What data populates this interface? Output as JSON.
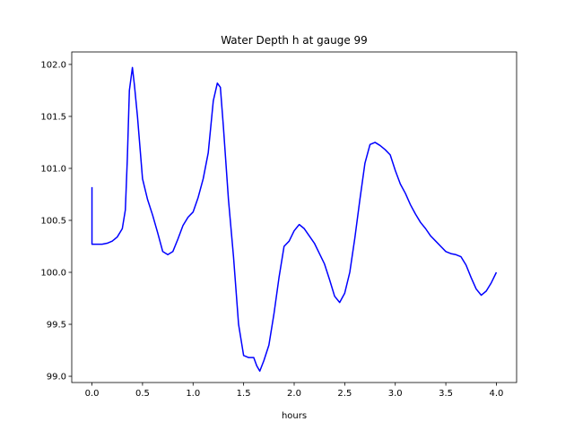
{
  "chart_data": {
    "type": "line",
    "title": "Water Depth h at gauge 99",
    "xlabel": "hours",
    "ylabel": "",
    "xlim": [
      -0.2,
      4.2
    ],
    "ylim": [
      98.94,
      102.12
    ],
    "xticks": [
      0.0,
      0.5,
      1.0,
      1.5,
      2.0,
      2.5,
      3.0,
      3.5,
      4.0
    ],
    "xtick_labels": [
      "0.0",
      "0.5",
      "1.0",
      "1.5",
      "2.0",
      "2.5",
      "3.0",
      "3.5",
      "4.0"
    ],
    "yticks": [
      99.0,
      99.5,
      100.0,
      100.5,
      101.0,
      101.5,
      102.0
    ],
    "ytick_labels": [
      "99.0",
      "99.5",
      "100.0",
      "100.5",
      "101.0",
      "101.5",
      "102.0"
    ],
    "grid": false,
    "line_color": "#0000ff",
    "series": [
      {
        "x": [
          0.0,
          0.0,
          0.05,
          0.1,
          0.15,
          0.2,
          0.25,
          0.3,
          0.33,
          0.35,
          0.37,
          0.4,
          0.42,
          0.45,
          0.5,
          0.55,
          0.6,
          0.65,
          0.7,
          0.75,
          0.8,
          0.85,
          0.9,
          0.95,
          1.0,
          1.05,
          1.1,
          1.15,
          1.2,
          1.24,
          1.27,
          1.3,
          1.35,
          1.4,
          1.45,
          1.5,
          1.55,
          1.6,
          1.63,
          1.66,
          1.7,
          1.75,
          1.8,
          1.85,
          1.9,
          1.95,
          2.0,
          2.05,
          2.1,
          2.15,
          2.2,
          2.25,
          2.3,
          2.35,
          2.4,
          2.45,
          2.5,
          2.55,
          2.6,
          2.65,
          2.7,
          2.75,
          2.8,
          2.85,
          2.9,
          2.95,
          3.0,
          3.05,
          3.1,
          3.15,
          3.2,
          3.25,
          3.3,
          3.35,
          3.4,
          3.45,
          3.5,
          3.55,
          3.6,
          3.65,
          3.7,
          3.75,
          3.8,
          3.85,
          3.9,
          3.95,
          4.0
        ],
        "y": [
          100.82,
          100.27,
          100.27,
          100.27,
          100.28,
          100.3,
          100.34,
          100.42,
          100.6,
          101.1,
          101.75,
          101.97,
          101.8,
          101.5,
          100.9,
          100.7,
          100.55,
          100.38,
          100.2,
          100.17,
          100.2,
          100.32,
          100.45,
          100.53,
          100.58,
          100.72,
          100.9,
          101.15,
          101.65,
          101.82,
          101.78,
          101.4,
          100.7,
          100.15,
          99.5,
          99.2,
          99.18,
          99.18,
          99.1,
          99.05,
          99.15,
          99.3,
          99.6,
          99.95,
          100.25,
          100.3,
          100.4,
          100.46,
          100.42,
          100.35,
          100.28,
          100.18,
          100.08,
          99.93,
          99.77,
          99.71,
          99.8,
          100.0,
          100.33,
          100.7,
          101.05,
          101.23,
          101.25,
          101.22,
          101.18,
          101.13,
          100.98,
          100.85,
          100.76,
          100.65,
          100.56,
          100.48,
          100.42,
          100.35,
          100.3,
          100.25,
          100.2,
          100.18,
          100.17,
          100.15,
          100.07,
          99.95,
          99.84,
          99.78,
          99.82,
          99.9,
          100.0
        ]
      }
    ]
  }
}
